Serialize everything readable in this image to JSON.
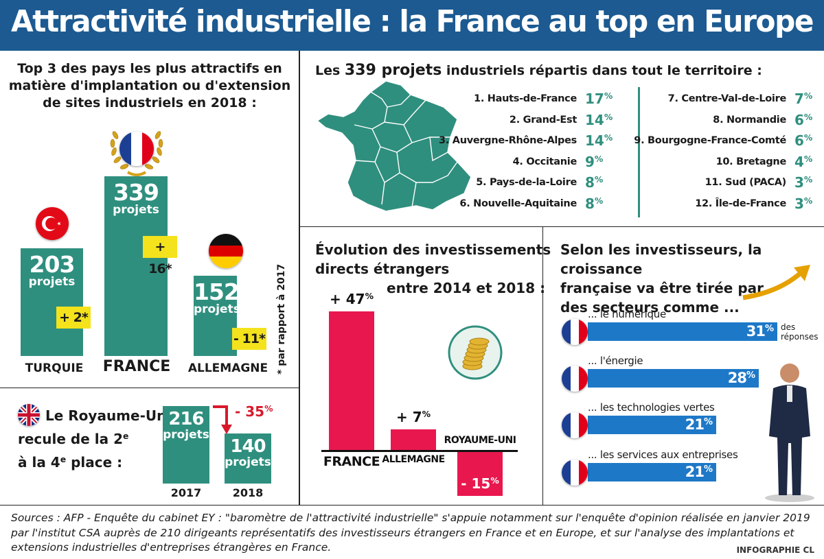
{
  "header": {
    "title": "Attractivité industrielle : la France au top en Europe"
  },
  "top3": {
    "title_line1": "Top 3 des pays les plus attractifs en",
    "title_line2": "matière d'implantation ou d'extension",
    "title_line3": "de sites industriels en 2018 :",
    "footnote": "* par rapport à 2017",
    "countries": [
      {
        "name": "TURQUIE",
        "projects": "203",
        "unit": "projets",
        "change": "+ 2*"
      },
      {
        "name": "FRANCE",
        "projects": "339",
        "unit": "projets",
        "change": "+ 16*"
      },
      {
        "name": "ALLEMAGNE",
        "projects": "152",
        "unit": "projets",
        "change": "- 11*"
      }
    ]
  },
  "uk": {
    "line1": "Le Royaume-Uni",
    "line2a": "recule de la 2",
    "line2sup": "e",
    "line3a": "à la 4",
    "line3sup": "e",
    "line3b": " place :",
    "change": "- 35",
    "change_unit": "%",
    "bars": [
      {
        "year": "2017",
        "value": "216",
        "unit": "projets"
      },
      {
        "year": "2018",
        "value": "140",
        "unit": "projets"
      }
    ]
  },
  "regions": {
    "title_pre": "Les ",
    "title_num": "339 projets",
    "title_post": " industriels répartis dans tout le territoire :",
    "left": [
      {
        "name": "1. Hauts-de-France",
        "pct": "17",
        "unit": "%"
      },
      {
        "name": "2. Grand-Est",
        "pct": "14",
        "unit": "%"
      },
      {
        "name": "3. Auvergne-Rhône-Alpes",
        "pct": "14",
        "unit": "%"
      },
      {
        "name": "4. Occitanie",
        "pct": "9",
        "unit": "%"
      },
      {
        "name": "5. Pays-de-la-Loire",
        "pct": "8",
        "unit": "%"
      },
      {
        "name": "6. Nouvelle-Aquitaine",
        "pct": "8",
        "unit": "%"
      }
    ],
    "right": [
      {
        "name": "7. Centre-Val-de-Loire",
        "pct": "7",
        "unit": "%"
      },
      {
        "name": "8. Normandie",
        "pct": "6",
        "unit": "%"
      },
      {
        "name": "9. Bourgogne-France-Comté",
        "pct": "6",
        "unit": "%"
      },
      {
        "name": "10. Bretagne",
        "pct": "4",
        "unit": "%"
      },
      {
        "name": "11. Sud (PACA)",
        "pct": "3",
        "unit": "%"
      },
      {
        "name": "12. Île-de-France",
        "pct": "3",
        "unit": "%"
      }
    ]
  },
  "fdi": {
    "title_line1": "Évolution des investissements",
    "title_line2": "directs étrangers",
    "title_line3": "entre 2014 et 2018 :",
    "bars": [
      {
        "label": "FRANCE",
        "value_text": "+ 47",
        "unit": "%"
      },
      {
        "label": "ALLEMAGNE",
        "value_text": "+ 7",
        "unit": "%"
      },
      {
        "label": "ROYAUME-UNI",
        "value_text": "- 15",
        "unit": "%"
      }
    ]
  },
  "sectors": {
    "title_line1": "Selon les investisseurs, la croissance",
    "title_line2": "française va être tirée par",
    "title_line3": "des secteurs comme ...",
    "note_line1": "des",
    "note_line2": "réponses",
    "items": [
      {
        "label": "... le numérique",
        "value": "31",
        "unit": "%"
      },
      {
        "label": "... l'énergie",
        "value": "28",
        "unit": "%"
      },
      {
        "label": "... les technologies vertes",
        "value": "21",
        "unit": "%"
      },
      {
        "label": "... les services aux entreprises",
        "value": "21",
        "unit": "%"
      }
    ]
  },
  "footer": {
    "sources": "Sources : AFP - Enquête du cabinet EY : \"baromètre de l'attractivité industrielle\" s'appuie notamment sur l'enquête d'opinion réalisée en janvier 2019 par l'institut CSA auprès de 210 dirigeants représentatifs des investisseurs étrangers en France et en Europe, et sur l'analyse des implantations et extensions industrielles d'entreprises étrangères en France.",
    "credit": "INFOGRAPHIE CL"
  },
  "colors": {
    "header": "#1c5a91",
    "teal": "#2f8f7e",
    "badge": "#f4e21c",
    "red": "#e8174e",
    "blue": "#1e78c8"
  },
  "chart_data": [
    {
      "type": "bar",
      "categories": [
        "TURQUIE",
        "FRANCE",
        "ALLEMAGNE"
      ],
      "values": [
        203,
        339,
        152
      ],
      "changes_vs_2017": [
        2,
        16,
        -11
      ]
    },
    {
      "type": "bar",
      "categories": [
        "2017",
        "2018"
      ],
      "values": [
        216,
        140
      ],
      "change_pct": -35
    },
    {
      "type": "table",
      "categories": [
        "Hauts-de-France",
        "Grand-Est",
        "Auvergne-Rhône-Alpes",
        "Occitanie",
        "Pays-de-la-Loire",
        "Nouvelle-Aquitaine",
        "Centre-Val-de-Loire",
        "Normandie",
        "Bourgogne-France-Comté",
        "Bretagne",
        "Sud (PACA)",
        "Île-de-France"
      ],
      "values": [
        17,
        14,
        14,
        9,
        8,
        8,
        7,
        6,
        6,
        4,
        3,
        3
      ]
    },
    {
      "type": "bar",
      "categories": [
        "FRANCE",
        "ALLEMAGNE",
        "ROYAUME-UNI"
      ],
      "values": [
        47,
        7,
        -15
      ]
    },
    {
      "type": "bar",
      "orientation": "horizontal",
      "categories": [
        "... le numérique",
        "... l'énergie",
        "... les technologies vertes",
        "... les services aux entreprises"
      ],
      "values": [
        31,
        28,
        21,
        21
      ]
    }
  ]
}
